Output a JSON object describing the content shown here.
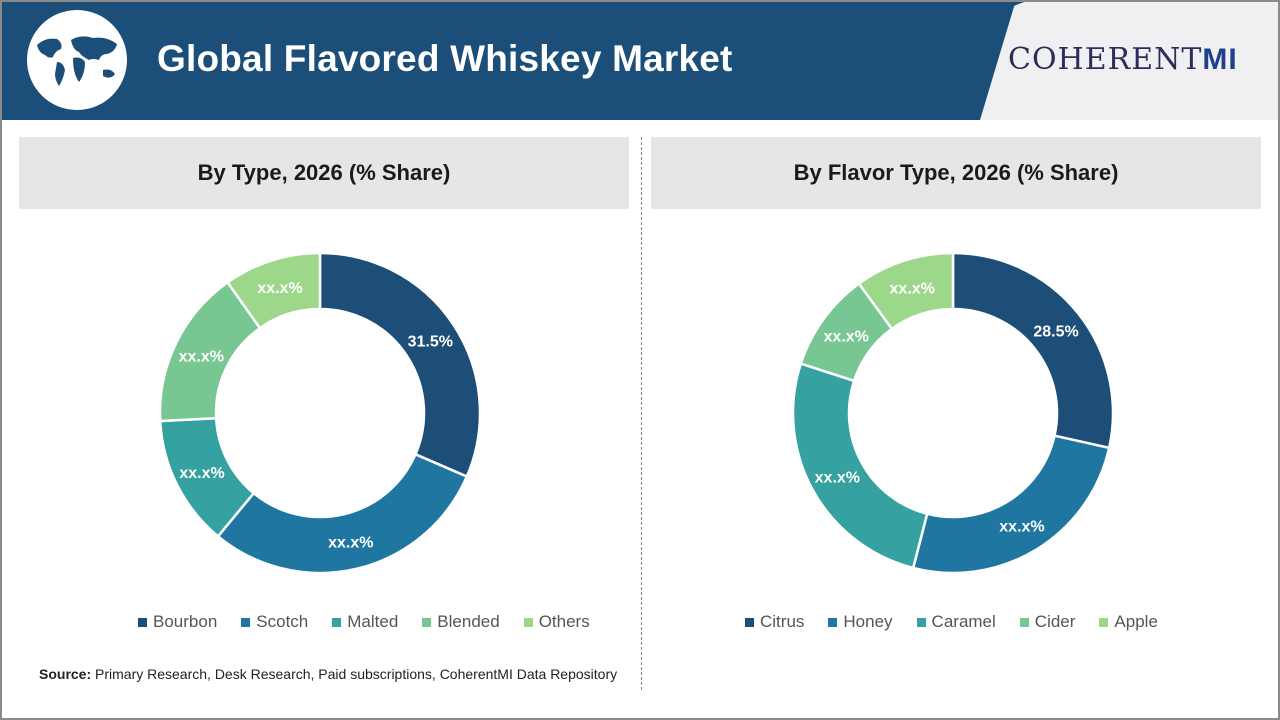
{
  "header": {
    "title": "Global Flavored Whiskey Market",
    "brand_main": "COHERENT",
    "brand_suffix": "MI"
  },
  "source": {
    "label": "Source:",
    "text": " Primary Research, Desk Research, Paid subscriptions, CoherentMI Data Repository"
  },
  "chart_data": [
    {
      "type": "pie",
      "donut": true,
      "title": "By Type, 2026 (% Share)",
      "categories": [
        "Bourbon",
        "Scotch",
        "Malted",
        "Blended",
        "Others"
      ],
      "values": [
        31.5,
        29.5,
        13.2,
        16.0,
        9.8
      ],
      "labels": [
        "31.5%",
        "xx.x%",
        "xx.x%",
        "xx.x%",
        "xx.x%"
      ],
      "colors": [
        "#1c4e78",
        "#1f76a0",
        "#35a1a0",
        "#78c793",
        "#9dd88a"
      ],
      "legend": "bottom"
    },
    {
      "type": "pie",
      "donut": true,
      "title": "By Flavor Type, 2026 (% Share)",
      "categories": [
        "Citrus",
        "Honey",
        "Caramel",
        "Cider",
        "Apple"
      ],
      "values": [
        28.5,
        25.5,
        26.0,
        10.0,
        10.0
      ],
      "labels": [
        "28.5%",
        "xx.x%",
        "xx.x%",
        "xx.x%",
        "xx.x%"
      ],
      "colors": [
        "#1c4e78",
        "#1f76a0",
        "#35a1a0",
        "#78c793",
        "#9dd88a"
      ],
      "legend": "bottom"
    }
  ]
}
